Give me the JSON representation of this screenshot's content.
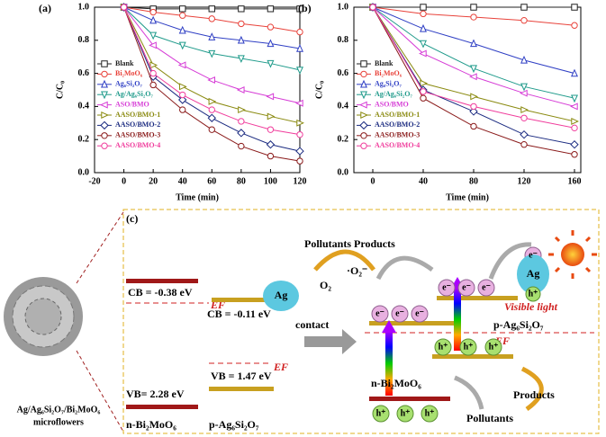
{
  "chart_data": [
    {
      "type": "line",
      "panel_label": "(a)",
      "xlabel": "Time (min)",
      "ylabel": "C/C₀",
      "x": [
        0,
        20,
        40,
        60,
        80,
        100,
        120
      ],
      "xlim": [
        -20,
        120
      ],
      "xticks": [
        -20,
        0,
        20,
        40,
        60,
        80,
        100,
        120
      ],
      "ylim": [
        0,
        1
      ],
      "yticks": [
        {
          "value": 0,
          "label": "0.0"
        },
        0.2,
        0.4,
        0.6,
        0.8,
        {
          "value": 1,
          "label": "1.0"
        }
      ],
      "series": [
        {
          "name": "Blank",
          "color": "#222222",
          "marker": "square",
          "values": [
            1,
            0.99,
            0.99,
            0.99,
            0.99,
            0.99,
            0.99
          ]
        },
        {
          "name": "Bi₂MoO₆",
          "color": "#e8423a",
          "marker": "circle",
          "values": [
            1,
            0.97,
            0.95,
            0.93,
            0.9,
            0.88,
            0.85
          ]
        },
        {
          "name": "Ag₆Si₂O₇",
          "color": "#2f3fc4",
          "marker": "triangle",
          "values": [
            1,
            0.92,
            0.86,
            0.82,
            0.8,
            0.78,
            0.75
          ]
        },
        {
          "name": "Ag/Ag₆Si₂O₇",
          "color": "#1e9a8a",
          "marker": "triangle-down",
          "values": [
            1,
            0.83,
            0.77,
            0.72,
            0.69,
            0.66,
            0.62
          ]
        },
        {
          "name": "ASO/BMO",
          "color": "#d63cd6",
          "marker": "triangle-left",
          "values": [
            1,
            0.77,
            0.65,
            0.56,
            0.5,
            0.46,
            0.42
          ]
        },
        {
          "name": "AASO/BMO-1",
          "color": "#8a8a10",
          "marker": "triangle-right",
          "values": [
            1,
            0.65,
            0.52,
            0.43,
            0.38,
            0.34,
            0.3
          ]
        },
        {
          "name": "AASO/BMO-2",
          "color": "#1a2a80",
          "marker": "diamond",
          "values": [
            1,
            0.58,
            0.44,
            0.33,
            0.24,
            0.17,
            0.13
          ]
        },
        {
          "name": "AASO/BMO-3",
          "color": "#8a1a1a",
          "marker": "circle",
          "values": [
            1,
            0.53,
            0.38,
            0.26,
            0.16,
            0.1,
            0.07
          ]
        },
        {
          "name": "AASO/BMO-4",
          "color": "#f03c9c",
          "marker": "circle",
          "values": [
            1,
            0.6,
            0.47,
            0.38,
            0.31,
            0.26,
            0.23
          ]
        }
      ]
    },
    {
      "type": "line",
      "panel_label": "(b)",
      "xlabel": "Time (min)",
      "ylabel": "C/C₀",
      "x": [
        0,
        40,
        80,
        120,
        160
      ],
      "xlim": [
        -15,
        165
      ],
      "xticks": [
        0,
        40,
        80,
        120,
        160
      ],
      "ylim": [
        0,
        1
      ],
      "yticks": [
        {
          "value": 0,
          "label": "0.0"
        },
        0.2,
        0.4,
        0.6,
        0.8,
        {
          "value": 1,
          "label": "1.0"
        }
      ],
      "series": [
        {
          "name": "Blank",
          "color": "#222222",
          "marker": "square",
          "values": [
            1,
            1,
            1,
            1,
            1
          ]
        },
        {
          "name": "Bi₂MoO₆",
          "color": "#e8423a",
          "marker": "circle",
          "values": [
            1,
            0.96,
            0.94,
            0.92,
            0.89
          ]
        },
        {
          "name": "Ag₆Si₂O₇",
          "color": "#2f3fc4",
          "marker": "triangle",
          "values": [
            1,
            0.87,
            0.78,
            0.68,
            0.6
          ]
        },
        {
          "name": "Ag/Ag₆Si₂O₇",
          "color": "#1e9a8a",
          "marker": "triangle-down",
          "values": [
            1,
            0.78,
            0.63,
            0.52,
            0.45
          ]
        },
        {
          "name": "ASO/BMO",
          "color": "#d63cd6",
          "marker": "triangle-left",
          "values": [
            1,
            0.72,
            0.58,
            0.48,
            0.4
          ]
        },
        {
          "name": "AASO/BMO-1",
          "color": "#8a8a10",
          "marker": "triangle-right",
          "values": [
            1,
            0.54,
            0.46,
            0.38,
            0.31
          ]
        },
        {
          "name": "AASO/BMO-2",
          "color": "#1a2a80",
          "marker": "diamond",
          "values": [
            1,
            0.5,
            0.37,
            0.23,
            0.17
          ]
        },
        {
          "name": "AASO/BMO-3",
          "color": "#8a1a1a",
          "marker": "circle",
          "values": [
            1,
            0.45,
            0.28,
            0.17,
            0.11
          ]
        },
        {
          "name": "AASO/BMO-4",
          "color": "#f03c9c",
          "marker": "circle",
          "values": [
            1,
            0.49,
            0.4,
            0.33,
            0.27
          ]
        }
      ]
    }
  ],
  "diagram": {
    "panel_label": "(c)",
    "cb_bmo": "CB = -0.38 eV",
    "vb_bmo": "VB= 2.28 eV",
    "cb_aso": "CB = -0.11 eV",
    "vb_aso": "VB = 1.47 eV",
    "fermi": "EF",
    "ag": "Ag",
    "contact": "contact",
    "n_bmo": "n-Bi₂MoO₆",
    "p_aso": "p-Ag₆Si₂O₇",
    "pollutants_products": "Pollutants Products",
    "o2": "O₂",
    "o2_radical": "·O₂⁻",
    "electron": "e⁻",
    "hole": "h⁺",
    "visible_light": "Visible light",
    "products": "Products",
    "pollutants": "Pollutants",
    "caption": [
      "Ag/Ag₆Si₂O₇/Bi₂MoO₆",
      "microflowers"
    ]
  }
}
